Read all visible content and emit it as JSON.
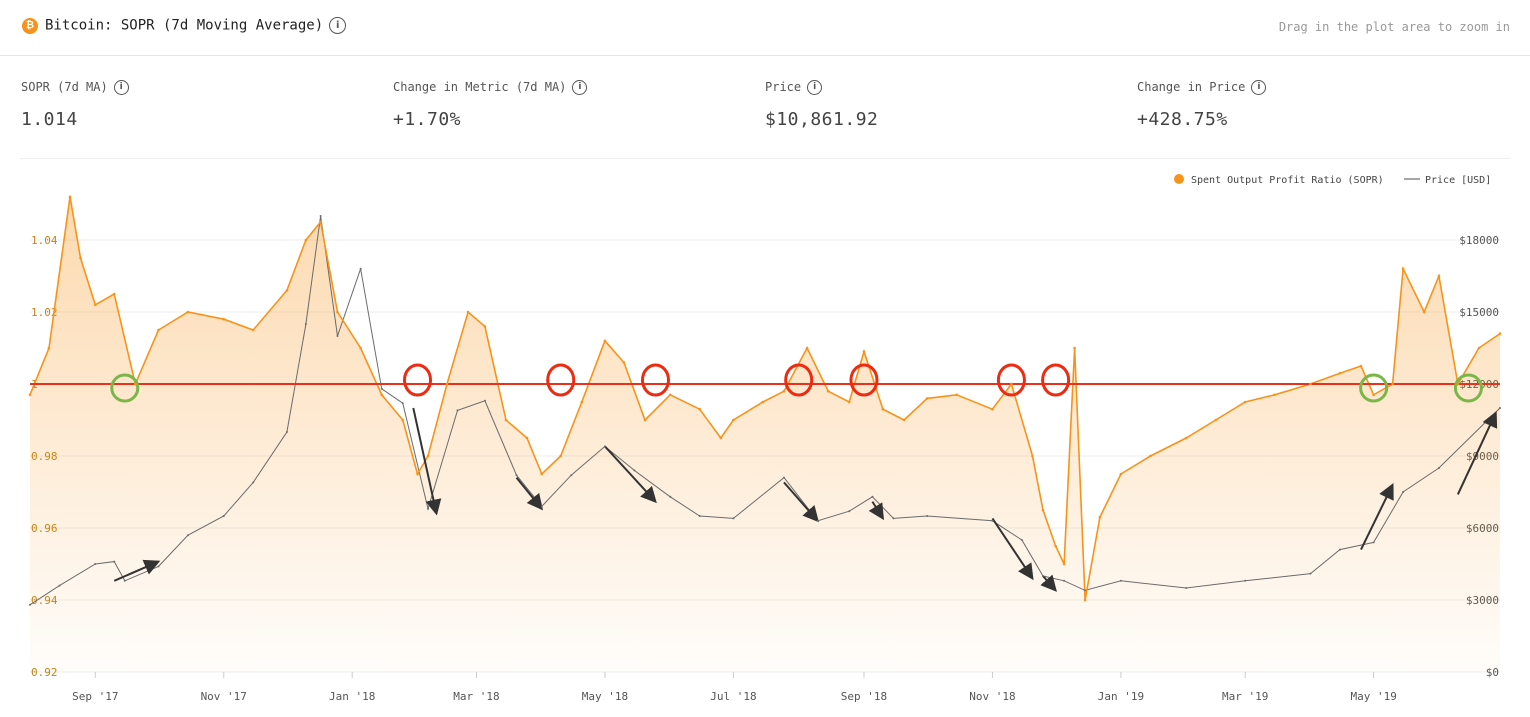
{
  "header": {
    "coin_icon": "bitcoin-icon",
    "title": "Bitcoin: SOPR (7d Moving Average)",
    "zoom_hint": "Drag in the plot area to zoom in"
  },
  "metrics": [
    {
      "label": "SOPR (7d MA)",
      "value": "1.014"
    },
    {
      "label": "Change in Metric (7d MA)",
      "value": "+1.70%"
    },
    {
      "label": "Price",
      "value": "$10,861.92"
    },
    {
      "label": "Change in Price",
      "value": "+428.75%"
    }
  ],
  "colors": {
    "sopr": "#f7931a",
    "price": "#6b6b6b",
    "threshold": "#e8321e",
    "green_marker": "#7ab648",
    "red_marker": "#ee2a10"
  },
  "chart_data": {
    "type": "line",
    "legend": {
      "position": "top-right",
      "entries": [
        "Spent Output Profit Ratio (SOPR)",
        "Price [USD]"
      ]
    },
    "x_ticks": [
      "Sep '17",
      "Nov '17",
      "Jan '18",
      "Mar '18",
      "May '18",
      "Jul '18",
      "Sep '18",
      "Nov '18",
      "Jan '19",
      "Mar '19",
      "May '19"
    ],
    "x_range": [
      "2017-08-01",
      "2019-06-30"
    ],
    "y_left": {
      "ticks": [
        "0.92",
        "0.94",
        "0.96",
        "0.98",
        "1",
        "1.02",
        "1.04"
      ],
      "range": [
        0.92,
        1.06
      ]
    },
    "y_right": {
      "ticks": [
        "$0",
        "$3000",
        "$6000",
        "$9000",
        "$12000",
        "$15000",
        "$18000"
      ],
      "range": [
        0,
        21000
      ]
    },
    "threshold": 1.0,
    "series": [
      {
        "name": "Spent Output Profit Ratio (SOPR)",
        "axis": "left",
        "x": [
          "2017-08-01",
          "2017-08-10",
          "2017-08-20",
          "2017-08-25",
          "2017-09-01",
          "2017-09-10",
          "2017-09-20",
          "2017-10-01",
          "2017-10-15",
          "2017-11-01",
          "2017-11-15",
          "2017-12-01",
          "2017-12-10",
          "2017-12-17",
          "2017-12-25",
          "2018-01-05",
          "2018-01-15",
          "2018-01-25",
          "2018-02-01",
          "2018-02-06",
          "2018-02-15",
          "2018-02-25",
          "2018-03-05",
          "2018-03-15",
          "2018-03-25",
          "2018-04-01",
          "2018-04-10",
          "2018-04-20",
          "2018-05-01",
          "2018-05-10",
          "2018-05-20",
          "2018-06-01",
          "2018-06-15",
          "2018-06-25",
          "2018-07-01",
          "2018-07-15",
          "2018-07-25",
          "2018-08-05",
          "2018-08-15",
          "2018-08-25",
          "2018-09-01",
          "2018-09-10",
          "2018-09-20",
          "2018-10-01",
          "2018-10-15",
          "2018-11-01",
          "2018-11-10",
          "2018-11-20",
          "2018-11-25",
          "2018-12-01",
          "2018-12-05",
          "2018-12-10",
          "2018-12-15",
          "2018-12-22",
          "2019-01-01",
          "2019-01-15",
          "2019-02-01",
          "2019-02-15",
          "2019-03-01",
          "2019-03-15",
          "2019-04-01",
          "2019-04-15",
          "2019-04-25",
          "2019-05-01",
          "2019-05-10",
          "2019-05-15",
          "2019-05-25",
          "2019-06-01",
          "2019-06-10",
          "2019-06-20",
          "2019-06-30"
        ],
        "values": [
          0.997,
          1.01,
          1.052,
          1.035,
          1.022,
          1.025,
          1.0,
          1.015,
          1.02,
          1.018,
          1.015,
          1.026,
          1.04,
          1.045,
          1.02,
          1.01,
          0.997,
          0.99,
          0.975,
          0.98,
          1.0,
          1.02,
          1.016,
          0.99,
          0.985,
          0.975,
          0.98,
          0.995,
          1.012,
          1.006,
          0.99,
          0.997,
          0.993,
          0.985,
          0.99,
          0.995,
          0.998,
          1.01,
          0.998,
          0.995,
          1.009,
          0.993,
          0.99,
          0.996,
          0.997,
          0.993,
          1.0,
          0.98,
          0.965,
          0.955,
          0.95,
          1.01,
          0.94,
          0.963,
          0.975,
          0.98,
          0.985,
          0.99,
          0.995,
          0.997,
          1.0,
          1.003,
          1.005,
          0.997,
          1.0,
          1.032,
          1.02,
          1.03,
          1.0,
          1.01,
          1.014
        ]
      },
      {
        "name": "Price [USD]",
        "axis": "right",
        "x": [
          "2017-08-01",
          "2017-08-15",
          "2017-09-01",
          "2017-09-10",
          "2017-09-15",
          "2017-10-01",
          "2017-10-15",
          "2017-11-01",
          "2017-11-15",
          "2017-12-01",
          "2017-12-10",
          "2017-12-17",
          "2017-12-25",
          "2018-01-05",
          "2018-01-15",
          "2018-01-25",
          "2018-02-06",
          "2018-02-20",
          "2018-03-05",
          "2018-03-20",
          "2018-04-01",
          "2018-04-15",
          "2018-05-01",
          "2018-05-15",
          "2018-06-01",
          "2018-06-15",
          "2018-07-01",
          "2018-07-25",
          "2018-08-10",
          "2018-08-25",
          "2018-09-05",
          "2018-09-15",
          "2018-10-01",
          "2018-11-01",
          "2018-11-15",
          "2018-11-25",
          "2018-12-05",
          "2018-12-15",
          "2019-01-01",
          "2019-02-01",
          "2019-03-01",
          "2019-04-01",
          "2019-04-15",
          "2019-05-01",
          "2019-05-15",
          "2019-06-01",
          "2019-06-30"
        ],
        "values": [
          2800,
          3600,
          4500,
          4600,
          3800,
          4400,
          5700,
          6500,
          7900,
          10000,
          14500,
          19000,
          14000,
          16800,
          11800,
          11200,
          6800,
          10900,
          11300,
          8200,
          6900,
          8200,
          9400,
          8400,
          7300,
          6500,
          6400,
          8100,
          6300,
          6700,
          7300,
          6400,
          6500,
          6300,
          5500,
          4000,
          3800,
          3400,
          3800,
          3500,
          3800,
          4100,
          5100,
          5400,
          7500,
          8500,
          11000
        ]
      }
    ]
  },
  "annotations": {
    "red_circles": [
      "2018-02-01",
      "2018-04-10",
      "2018-05-25",
      "2018-08-01",
      "2018-09-01",
      "2018-11-10",
      "2018-12-01"
    ],
    "green_circles": [
      "2017-09-15",
      "2019-05-01",
      "2019-06-15"
    ],
    "arrows": [
      {
        "from": [
          "2017-09-10",
          3800
        ],
        "to": [
          "2017-10-01",
          4600
        ]
      },
      {
        "from": [
          "2018-01-30",
          11000
        ],
        "to": [
          "2018-02-10",
          6600
        ]
      },
      {
        "from": [
          "2018-03-20",
          8100
        ],
        "to": [
          "2018-04-01",
          6800
        ]
      },
      {
        "from": [
          "2018-05-01",
          9400
        ],
        "to": [
          "2018-05-25",
          7100
        ]
      },
      {
        "from": [
          "2018-07-25",
          7900
        ],
        "to": [
          "2018-08-10",
          6300
        ]
      },
      {
        "from": [
          "2018-09-05",
          7100
        ],
        "to": [
          "2018-09-10",
          6400
        ]
      },
      {
        "from": [
          "2018-11-01",
          6400
        ],
        "to": [
          "2018-11-20",
          3900
        ]
      },
      {
        "from": [
          "2018-11-25",
          4000
        ],
        "to": [
          "2018-12-01",
          3400
        ]
      },
      {
        "from": [
          "2019-04-25",
          5100
        ],
        "to": [
          "2019-05-10",
          7800
        ]
      },
      {
        "from": [
          "2019-06-10",
          7400
        ],
        "to": [
          "2019-06-28",
          10800
        ]
      }
    ]
  }
}
